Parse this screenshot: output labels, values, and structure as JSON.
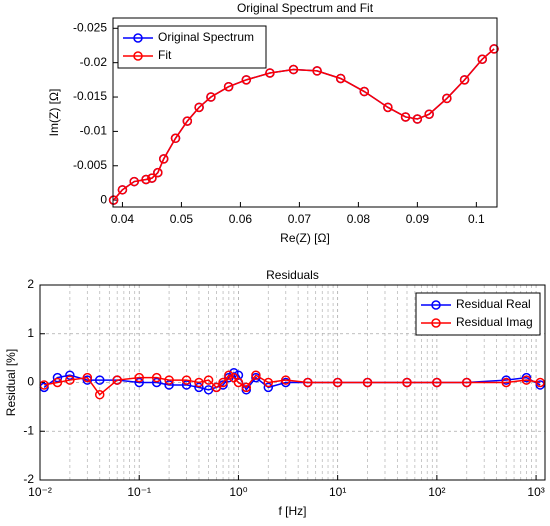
{
  "chart_data": [
    {
      "type": "line",
      "marker": "o",
      "title": "Original Spectrum and Fit",
      "xlabel": "Re(Z) [Ω]",
      "ylabel": "Im(Z) [Ω]",
      "x": [
        0.0385,
        0.04,
        0.042,
        0.044,
        0.045,
        0.046,
        0.047,
        0.049,
        0.051,
        0.053,
        0.055,
        0.058,
        0.061,
        0.065,
        0.069,
        0.073,
        0.077,
        0.081,
        0.085,
        0.088,
        0.09,
        0.092,
        0.095,
        0.098,
        0.101,
        0.103
      ],
      "series": [
        {
          "name": "Original Spectrum",
          "color": "#0000ff",
          "values": [
            0,
            -0.0015,
            -0.0027,
            -0.003,
            -0.0032,
            -0.004,
            -0.006,
            -0.009,
            -0.0115,
            -0.0135,
            -0.015,
            -0.0165,
            -0.0175,
            -0.0185,
            -0.019,
            -0.0188,
            -0.0177,
            -0.0158,
            -0.0135,
            -0.0121,
            -0.0118,
            -0.0125,
            -0.0148,
            -0.0175,
            -0.0205,
            -0.022
          ]
        },
        {
          "name": "Fit",
          "color": "#ff0000",
          "values": [
            0,
            -0.0015,
            -0.0027,
            -0.003,
            -0.0032,
            -0.004,
            -0.006,
            -0.009,
            -0.0115,
            -0.0135,
            -0.015,
            -0.0165,
            -0.0175,
            -0.0185,
            -0.019,
            -0.0188,
            -0.0177,
            -0.0158,
            -0.0135,
            -0.0121,
            -0.0118,
            -0.0125,
            -0.0148,
            -0.0175,
            -0.0205,
            -0.022
          ]
        }
      ],
      "xlim": [
        0.0384,
        0.1035
      ],
      "xticks": [
        0.04,
        0.05,
        0.06,
        0.07,
        0.08,
        0.09,
        0.1
      ],
      "ylim": [
        0.001,
        -0.0265
      ],
      "yticks": [
        0,
        -0.005,
        -0.01,
        -0.015,
        -0.02,
        -0.025
      ],
      "legend": "upper left",
      "grid": false
    },
    {
      "type": "line",
      "marker": "o",
      "title": "Residuals",
      "xlabel": "f [Hz]",
      "ylabel": "Residual [%]",
      "xscale": "log",
      "x": [
        0.011,
        0.015,
        0.02,
        0.03,
        0.04,
        0.06,
        0.1,
        0.15,
        0.2,
        0.3,
        0.4,
        0.5,
        0.6,
        0.7,
        0.8,
        0.9,
        1,
        1.2,
        1.5,
        2,
        3,
        5,
        10,
        20,
        50,
        100,
        200,
        500,
        800,
        1100
      ],
      "series": [
        {
          "name": "Residual Real",
          "color": "#0000ff",
          "values": [
            -0.1,
            0.1,
            0.15,
            0.05,
            0.05,
            0.05,
            0,
            0,
            -0.05,
            -0.05,
            -0.1,
            -0.15,
            -0.1,
            -0.05,
            0.1,
            0.2,
            0.15,
            -0.15,
            0.1,
            -0.1,
            0,
            0,
            0,
            0,
            0,
            0,
            0,
            0.05,
            0.1,
            -0.05
          ]
        },
        {
          "name": "Residual Imag",
          "color": "#ff0000",
          "values": [
            -0.05,
            0,
            0.05,
            0.1,
            -0.25,
            0.05,
            0.1,
            0.1,
            0.05,
            0.05,
            0,
            0.05,
            -0.1,
            0,
            0.15,
            0.1,
            0,
            -0.1,
            0.15,
            0,
            0.05,
            0,
            0,
            0,
            0,
            0,
            0,
            0,
            0.05,
            0
          ]
        }
      ],
      "xlim": [
        0.01,
        1230
      ],
      "xticks": [
        {
          "value": 0.01,
          "label": "10⁻²"
        },
        {
          "value": 0.1,
          "label": "10⁻¹"
        },
        {
          "value": 1,
          "label": "10⁰"
        },
        {
          "value": 10,
          "label": "10¹"
        },
        {
          "value": 100,
          "label": "10²"
        },
        {
          "value": 1000,
          "label": "10³"
        }
      ],
      "ylim": [
        -2,
        2
      ],
      "yticks": [
        -2,
        -1,
        0,
        1,
        2
      ],
      "legend": "upper right",
      "grid": true
    }
  ]
}
